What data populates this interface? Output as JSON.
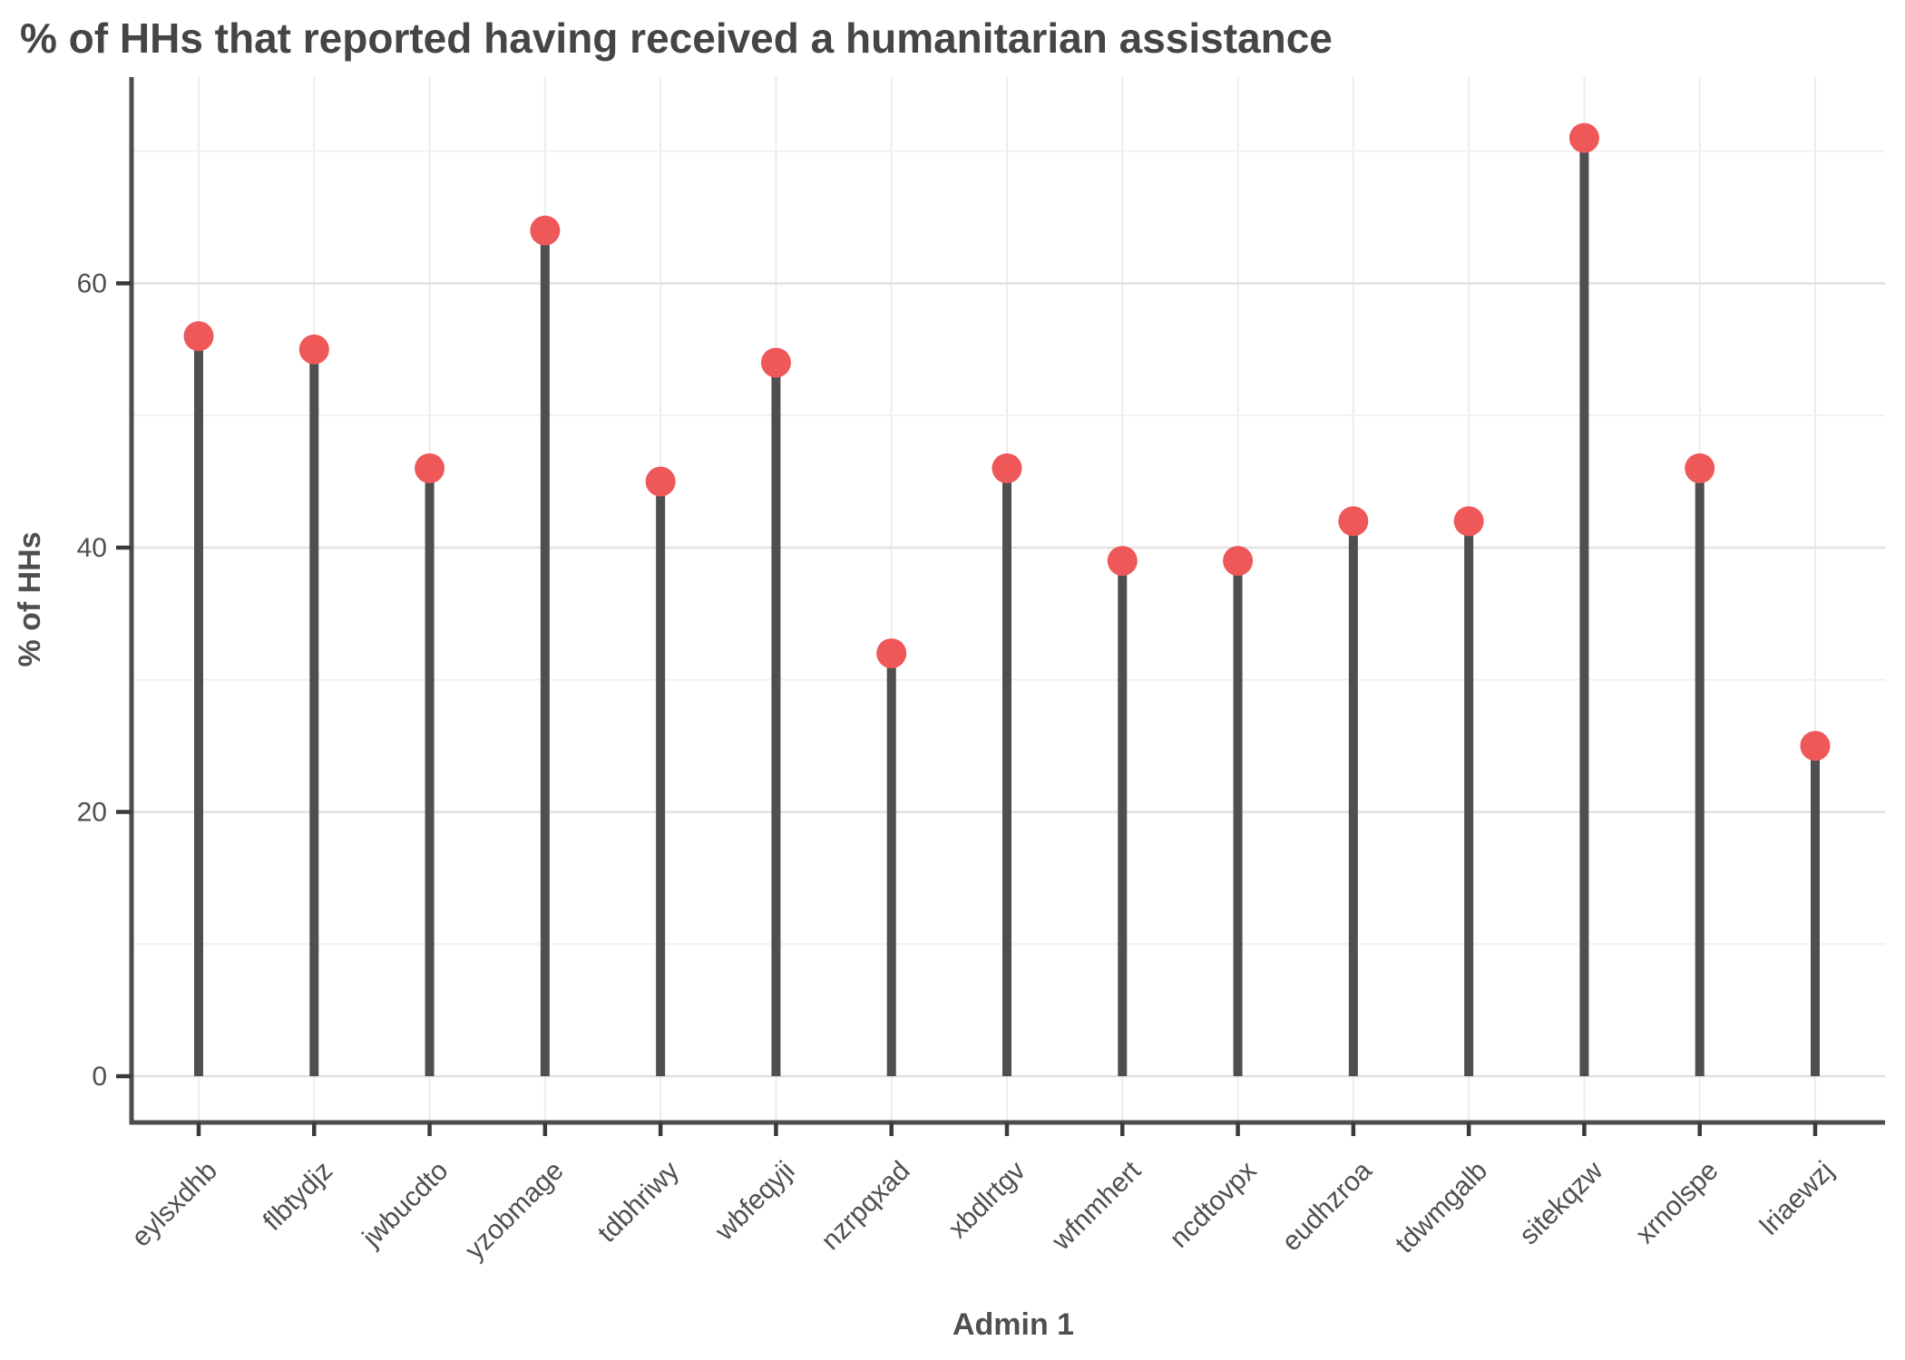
{
  "chart_data": {
    "type": "bar",
    "variant": "lollipop",
    "title": "% of HHs that reported having received a humanitarian assistance",
    "xlabel": "Admin 1",
    "ylabel": "% of HHs",
    "categories": [
      "eylsxdhb",
      "flbtydjz",
      "jwbucdto",
      "yzobmage",
      "tdbhriwy",
      "wbfeqyji",
      "nzrpqxad",
      "xbdlrtgv",
      "wfnmhert",
      "ncdtovpx",
      "eudhzroa",
      "tdwmgalb",
      "sitekqzw",
      "xrnolspe",
      "lriaewzj"
    ],
    "values": [
      56,
      55,
      46,
      64,
      45,
      54,
      32,
      46,
      39,
      39,
      42,
      42,
      71,
      46,
      25
    ],
    "ylim": [
      0,
      75
    ],
    "yticks_major": [
      0,
      20,
      40,
      60
    ],
    "yticks_minor": [
      10,
      30,
      50,
      70
    ],
    "grid": "horizontal major+minor gridlines on; vertical gridline per category; legend off",
    "legend": "none",
    "colors": {
      "point": "#EE5859",
      "stem": "#4F4F4F",
      "axis_line": "#4D4D4D",
      "tick_mark": "#3A3A3A",
      "tick_text": "#4F4F4F",
      "title_text": "#454545",
      "grid_major": "#E2E2E2",
      "grid_minor": "#F1F1F1",
      "grid_vertical": "#ECECEC",
      "background": "#FFFFFF"
    }
  }
}
